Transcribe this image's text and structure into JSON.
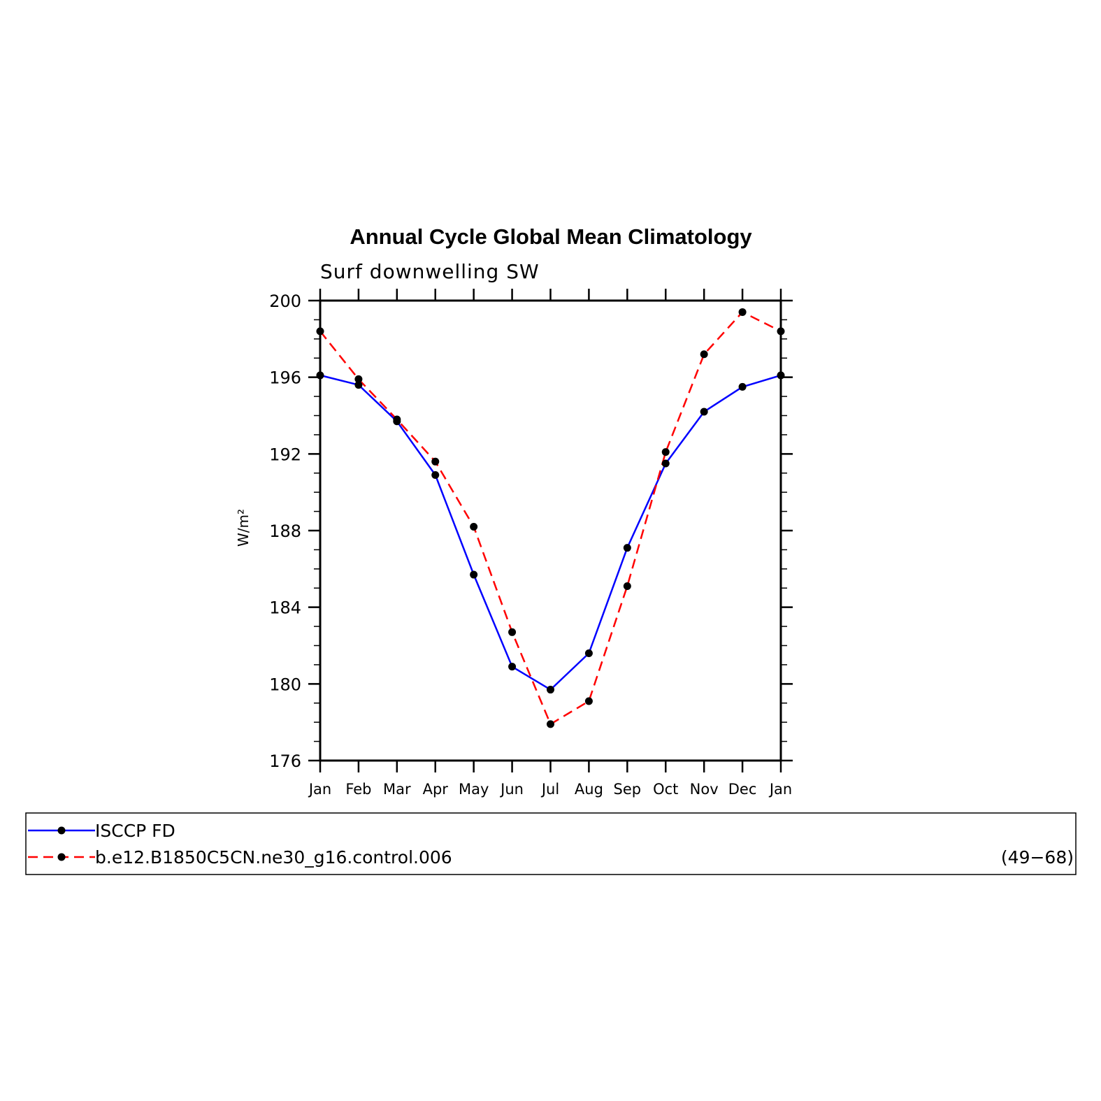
{
  "chart_data": {
    "type": "line",
    "title": "Annual Cycle Global Mean Climatology",
    "subtitle": "Surf downwelling SW",
    "ylabel": "W/m²",
    "xlabel": "",
    "categories": [
      "Jan",
      "Feb",
      "Mar",
      "Apr",
      "May",
      "Jun",
      "Jul",
      "Aug",
      "Sep",
      "Oct",
      "Nov",
      "Dec",
      "Jan"
    ],
    "ylim": [
      176,
      200
    ],
    "yticks": [
      "176",
      "180",
      "184",
      "188",
      "192",
      "196",
      "200"
    ],
    "grid": false,
    "legend_position": "bottom",
    "series": [
      {
        "name": "ISCCP FD",
        "color": "#0000ff",
        "dash": "solid",
        "values": [
          196.1,
          195.6,
          193.7,
          190.9,
          185.7,
          180.9,
          179.7,
          181.6,
          187.1,
          191.5,
          194.2,
          195.5,
          196.1
        ]
      },
      {
        "name": "b.e12.B1850C5CN.ne30_g16.control.006",
        "color": "#ff0000",
        "dash": "dashed",
        "values": [
          198.4,
          195.9,
          193.8,
          191.6,
          188.2,
          182.7,
          177.9,
          179.1,
          185.1,
          192.1,
          197.2,
          199.4,
          198.4
        ]
      }
    ],
    "legend_note": "(49−68)"
  }
}
